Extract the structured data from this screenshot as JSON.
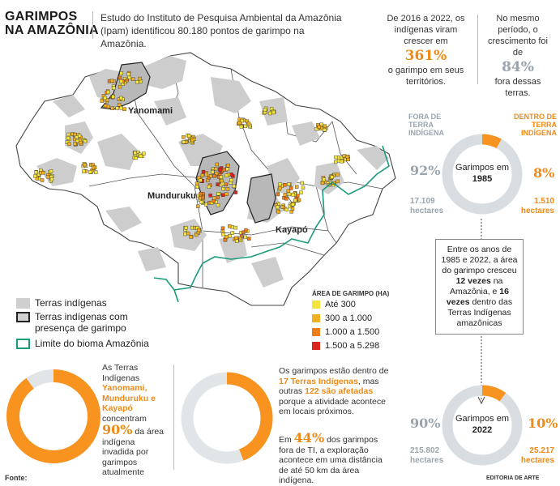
{
  "header": {
    "title_line1": "GARIMPOS",
    "title_line2": "NA AMAZÔNIA",
    "subtitle": "Estudo do Instituto de Pesquisa Ambiental da Amazônia (Ipam) identificou 80.180 pontos de garimpo na Amazônia."
  },
  "stats_top": {
    "left": {
      "pre": "De 2016 a 2022, os indígenas viram crescer em",
      "value": "361%",
      "post": "o garimpo em seus territórios."
    },
    "right": {
      "pre": "No mesmo período, o crescimento foi de",
      "value": "84%",
      "post": "fora dessas terras."
    }
  },
  "map": {
    "labels": {
      "yanomami": "Yanomami",
      "munduruku": "Munduruku",
      "kayapo": "Kayapó"
    },
    "legend": {
      "ti": "Terras indígenas",
      "ti_garimpo": "Terras indígenas com presença de garimpo",
      "limite": "Limite do bioma Amazônia"
    },
    "area_legend": {
      "title": "ÁREA DE GARIMPO (HA)",
      "items": [
        {
          "label": "Até 300",
          "color": "#f3e33a"
        },
        {
          "label": "300 a 1.000",
          "color": "#f2b01e"
        },
        {
          "label": "1.000 a 1.500",
          "color": "#ee7d17"
        },
        {
          "label": "1.500 a 5.298",
          "color": "#d9251c"
        }
      ]
    }
  },
  "right_panel": {
    "col_fora": "FORA DE TERRA INDÍGENA",
    "col_dentro": "DENTRO DE TERRA INDÍGENA",
    "d1985": {
      "center": "Garimpos em",
      "year": "1985",
      "fora_pct": "92%",
      "fora_ha": "17.109 hectares",
      "dentro_pct": "8%",
      "dentro_ha": "1.510 hectares",
      "dentro_fraction": 0.08
    },
    "box": {
      "t1": "Entre os anos de 1985 e 2022, a área do garimpo cresceu",
      "b1": "12 vezes",
      "t2": "na Amazônia, e",
      "b2": "16 vezes",
      "t3": "dentro das Terras Indígenas amazônicas"
    },
    "d2022": {
      "center": "Garimpos em",
      "year": "2022",
      "fora_pct": "90%",
      "fora_ha": "215.802 hectares",
      "dentro_pct": "10%",
      "dentro_ha": "25.217 hectares",
      "dentro_fraction": 0.1
    }
  },
  "bottom": {
    "left_text": {
      "t1": "As Terras Indígenas",
      "orange": "Yanomami, Munduruku e Kayapó",
      "t2": "concentram",
      "pct": "90%",
      "t3": "da área indígena invadida por garimpos atualmente",
      "fraction": 0.9
    },
    "mid_text": {
      "t1": "Os garimpos estão dentro de",
      "o1": "17 Terras Indígenas",
      "t2": ", mas outras",
      "o2": "122 são afetadas",
      "t3": "porque a atividade acontece em locais próximos.",
      "p_pre": "Em",
      "pct": "44%",
      "p_post": "dos garimpos fora de TI, a exploração acontece em uma distância de até 50 km da área indígena.",
      "fraction": 0.44
    },
    "fonte": "Fonte:",
    "credit": "EDITORIA DE ARTE"
  },
  "colors": {
    "orange": "#f7931e",
    "gray_ring": "#dfe3e6",
    "ti_gray": "#cfcfcf",
    "limit_green": "#1a9b7c"
  }
}
